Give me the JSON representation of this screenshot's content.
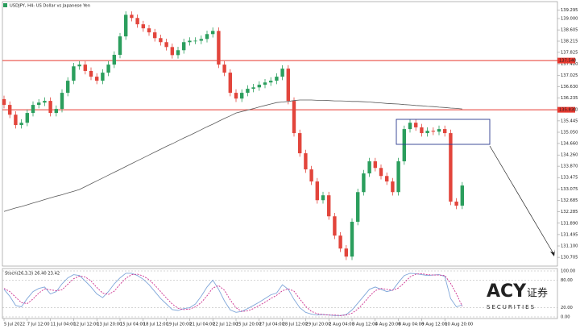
{
  "chart_data": [
    {
      "type": "candlestick",
      "title": "USDJPY, H4: US Dollar vs Japanese Yen",
      "categories": [
        "5 Jul 2022",
        null,
        null,
        null,
        "7 Jul 12:00",
        null,
        null,
        null,
        "11 Jul 04:00",
        null,
        null,
        null,
        "12 Jul 12:00",
        null,
        null,
        null,
        "13 Jul 20:00",
        null,
        null,
        null,
        "15 Jul 04:00",
        null,
        null,
        null,
        "18 Jul 12:00",
        null,
        null,
        null,
        "19 Jul 20:00",
        null,
        null,
        null,
        "21 Jul 04:00",
        null,
        null,
        null,
        "22 Jul 12:00",
        null,
        null,
        null,
        "25 Jul 20:00",
        null,
        null,
        null,
        "27 Jul 04:00",
        null,
        null,
        null,
        "28 Jul 12:00",
        null,
        null,
        null,
        "29 Jul 20:00",
        null,
        null,
        null,
        "2 Aug 04:00",
        null,
        null,
        null,
        "3 Aug 12:00",
        null,
        null,
        null,
        "4 Aug 20:00",
        null,
        null,
        null,
        "8 Aug 04:00",
        null,
        null,
        null,
        "9 Aug 12:00",
        null,
        null,
        null,
        "10 Aug 20:00",
        null,
        null,
        null
      ],
      "open": [
        136.2,
        136.0,
        135.66,
        135.3,
        135.38,
        135.72,
        136.0,
        136.08,
        136.14,
        135.72,
        135.86,
        136.42,
        136.84,
        137.34,
        137.4,
        137.18,
        136.98,
        136.84,
        137.12,
        137.4,
        137.74,
        138.38,
        139.13,
        139.02,
        138.8,
        138.66,
        138.52,
        138.32,
        138.18,
        138.01,
        137.73,
        137.9,
        138.18,
        138.23,
        138.23,
        138.29,
        138.46,
        138.57,
        137.4,
        137.12,
        136.42,
        136.22,
        136.42,
        136.56,
        136.61,
        136.7,
        136.78,
        136.84,
        136.98,
        137.26,
        136.14,
        135.02,
        134.32,
        133.76,
        133.34,
        132.69,
        132.86,
        132.13,
        131.46,
        131.01,
        130.73,
        131.94,
        132.97,
        133.62,
        134.04,
        133.81,
        133.53,
        133.34,
        132.97,
        134.04,
        135.16,
        135.38,
        135.22,
        135.02,
        135.1,
        135.07,
        135.16,
        135.02,
        132.64,
        132.5
      ],
      "high": [
        136.32,
        136.12,
        135.78,
        135.5,
        135.84,
        136.12,
        136.2,
        136.26,
        136.26,
        135.98,
        136.54,
        136.96,
        137.46,
        137.52,
        137.52,
        137.3,
        137.1,
        137.24,
        137.52,
        137.86,
        138.5,
        139.25,
        139.25,
        139.14,
        138.92,
        138.78,
        138.64,
        138.44,
        138.3,
        138.13,
        138.02,
        138.3,
        138.35,
        138.35,
        138.41,
        138.58,
        138.69,
        138.69,
        137.52,
        137.24,
        136.54,
        136.54,
        136.68,
        136.73,
        136.82,
        136.9,
        136.96,
        137.1,
        137.38,
        137.38,
        136.26,
        135.14,
        134.44,
        133.88,
        133.46,
        132.98,
        132.98,
        132.25,
        131.58,
        131.13,
        132.06,
        133.09,
        133.74,
        134.16,
        134.16,
        133.93,
        133.65,
        133.46,
        134.16,
        135.28,
        135.5,
        135.5,
        135.34,
        135.22,
        135.22,
        135.28,
        135.28,
        135.14,
        132.76,
        133.32
      ],
      "low": [
        135.88,
        135.54,
        135.18,
        135.18,
        135.26,
        135.6,
        135.88,
        135.96,
        135.6,
        135.6,
        135.74,
        136.3,
        136.72,
        137.22,
        137.06,
        136.86,
        136.72,
        136.72,
        137.0,
        137.28,
        137.62,
        138.26,
        138.9,
        138.68,
        138.54,
        138.4,
        138.2,
        138.06,
        137.89,
        137.61,
        137.61,
        137.78,
        138.06,
        138.11,
        138.11,
        138.17,
        138.34,
        137.28,
        137.0,
        136.3,
        136.1,
        136.1,
        136.3,
        136.44,
        136.49,
        136.58,
        136.66,
        136.72,
        136.86,
        136.02,
        134.9,
        134.2,
        133.64,
        133.22,
        132.57,
        132.57,
        132.01,
        131.34,
        130.89,
        130.61,
        130.61,
        131.82,
        132.85,
        133.5,
        133.69,
        133.41,
        133.22,
        132.85,
        132.85,
        133.92,
        135.04,
        135.1,
        134.9,
        134.9,
        134.95,
        134.95,
        134.9,
        132.52,
        132.38,
        132.38
      ],
      "close": [
        136.0,
        135.66,
        135.3,
        135.38,
        135.72,
        136.0,
        136.08,
        136.14,
        135.72,
        135.86,
        136.42,
        136.84,
        137.34,
        137.4,
        137.18,
        136.98,
        136.84,
        137.12,
        137.4,
        137.74,
        138.38,
        139.13,
        139.02,
        138.8,
        138.66,
        138.52,
        138.32,
        138.18,
        138.01,
        137.73,
        137.9,
        138.18,
        138.23,
        138.23,
        138.29,
        138.46,
        138.57,
        137.4,
        137.12,
        136.42,
        136.22,
        136.42,
        136.56,
        136.61,
        136.7,
        136.78,
        136.84,
        136.98,
        137.26,
        136.14,
        135.02,
        134.32,
        133.76,
        133.34,
        132.69,
        132.86,
        132.13,
        131.46,
        131.01,
        130.73,
        131.94,
        132.97,
        133.62,
        134.04,
        133.81,
        133.53,
        133.34,
        132.97,
        134.04,
        135.16,
        135.38,
        135.22,
        135.02,
        135.1,
        135.07,
        135.16,
        135.02,
        132.64,
        132.5,
        133.2
      ],
      "up_color": "#2b9e5d",
      "down_color": "#e2453c",
      "ma": {
        "color": "#5a5a5a",
        "values": [
          132.3,
          132.36,
          132.42,
          132.47,
          132.53,
          132.59,
          132.65,
          132.71,
          132.77,
          132.83,
          132.88,
          132.94,
          133.0,
          133.06,
          133.16,
          133.26,
          133.36,
          133.46,
          133.56,
          133.66,
          133.76,
          133.86,
          133.96,
          134.06,
          134.16,
          134.26,
          134.36,
          134.46,
          134.56,
          134.65,
          134.75,
          134.85,
          134.94,
          135.04,
          135.14,
          135.24,
          135.33,
          135.43,
          135.53,
          135.62,
          135.72,
          135.77,
          135.82,
          135.87,
          135.93,
          135.98,
          136.03,
          136.08,
          136.1,
          136.12,
          136.15,
          136.17,
          136.17,
          136.17,
          136.16,
          136.16,
          136.15,
          136.14,
          136.14,
          136.13,
          136.12,
          136.12,
          136.11,
          136.1,
          136.08,
          136.07,
          136.05,
          136.04,
          136.03,
          136.01,
          136.0,
          135.98,
          135.97,
          135.95,
          135.94,
          135.92,
          135.91,
          135.89,
          135.88,
          135.86
        ]
      },
      "hlines": [
        {
          "value": 137.54,
          "label": "137.540"
        },
        {
          "value": 135.83,
          "label": "135.830"
        }
      ],
      "hline_color": "#e8392f",
      "ylim": [
        130.4,
        139.56
      ],
      "yticks": [
        {
          "value": 130.705,
          "label": "130.705"
        },
        {
          "value": 131.1,
          "label": "131.100"
        },
        {
          "value": 131.495,
          "label": "131.495"
        },
        {
          "value": 131.89,
          "label": "131.890"
        },
        {
          "value": 132.285,
          "label": "132.285"
        },
        {
          "value": 132.685,
          "label": "132.685"
        },
        {
          "value": 133.075,
          "label": "133.075"
        },
        {
          "value": 133.475,
          "label": "133.475"
        },
        {
          "value": 133.87,
          "label": "133.870"
        },
        {
          "value": 134.26,
          "label": "134.260"
        },
        {
          "value": 134.66,
          "label": "134.660"
        },
        {
          "value": 135.05,
          "label": "135.050"
        },
        {
          "value": 135.445,
          "label": "135.445"
        },
        {
          "value": 135.84,
          "label": "135.840"
        },
        {
          "value": 136.235,
          "label": "136.235"
        },
        {
          "value": 136.63,
          "label": "136.630"
        },
        {
          "value": 137.025,
          "label": "137.025"
        },
        {
          "value": 137.42,
          "label": "137.420"
        },
        {
          "value": 137.825,
          "label": "137.825"
        },
        {
          "value": 138.215,
          "label": "138.215"
        },
        {
          "value": 138.605,
          "label": "138.605"
        },
        {
          "value": 139,
          "label": "139.000"
        },
        {
          "value": 139.295,
          "label": "139.295"
        }
      ]
    },
    {
      "type": "line",
      "title": "Stoch(26,3,3) 26.40 23.42",
      "ylim": [
        0,
        100
      ],
      "yticks": [
        {
          "value": 0,
          "label": "0.00"
        },
        {
          "value": 20,
          "label": "20.00"
        },
        {
          "value": 80,
          "label": "80.00"
        },
        {
          "value": 100,
          "label": "100.00"
        }
      ],
      "series": [
        {
          "color": "#7fa6d9",
          "dash": false,
          "values": [
            60,
            45,
            25,
            22,
            40,
            55,
            62,
            65,
            50,
            55,
            72,
            85,
            92,
            90,
            78,
            65,
            50,
            42,
            55,
            72,
            85,
            95,
            95,
            90,
            82,
            70,
            55,
            40,
            28,
            16,
            14,
            18,
            20,
            28,
            45,
            65,
            80,
            60,
            35,
            15,
            10,
            12,
            18,
            25,
            32,
            40,
            48,
            52,
            70,
            60,
            38,
            20,
            10,
            6,
            4,
            5,
            4,
            3,
            3,
            5,
            15,
            30,
            45,
            60,
            65,
            60,
            55,
            58,
            75,
            90,
            95,
            94,
            92,
            90,
            91,
            92,
            88,
            40,
            22,
            26.4
          ]
        },
        {
          "color": "#cc2f8f",
          "dash": true,
          "values": [
            62,
            55,
            43,
            31,
            29,
            39,
            52,
            61,
            59,
            57,
            59,
            71,
            83,
            89,
            87,
            78,
            64,
            52,
            49,
            56,
            71,
            84,
            92,
            93,
            89,
            81,
            69,
            55,
            41,
            28,
            19,
            16,
            17,
            22,
            31,
            46,
            63,
            68,
            58,
            37,
            20,
            12,
            13,
            18,
            25,
            32,
            40,
            47,
            57,
            61,
            56,
            39,
            23,
            12,
            7,
            5,
            4,
            4,
            3,
            4,
            8,
            17,
            30,
            45,
            57,
            62,
            60,
            58,
            63,
            74,
            87,
            93,
            94,
            92,
            91,
            91,
            90,
            73,
            50,
            23.42
          ]
        }
      ]
    }
  ],
  "watermark": {
    "brand": "ACY",
    "sub": "SECURITIES",
    "cn": "证券"
  }
}
